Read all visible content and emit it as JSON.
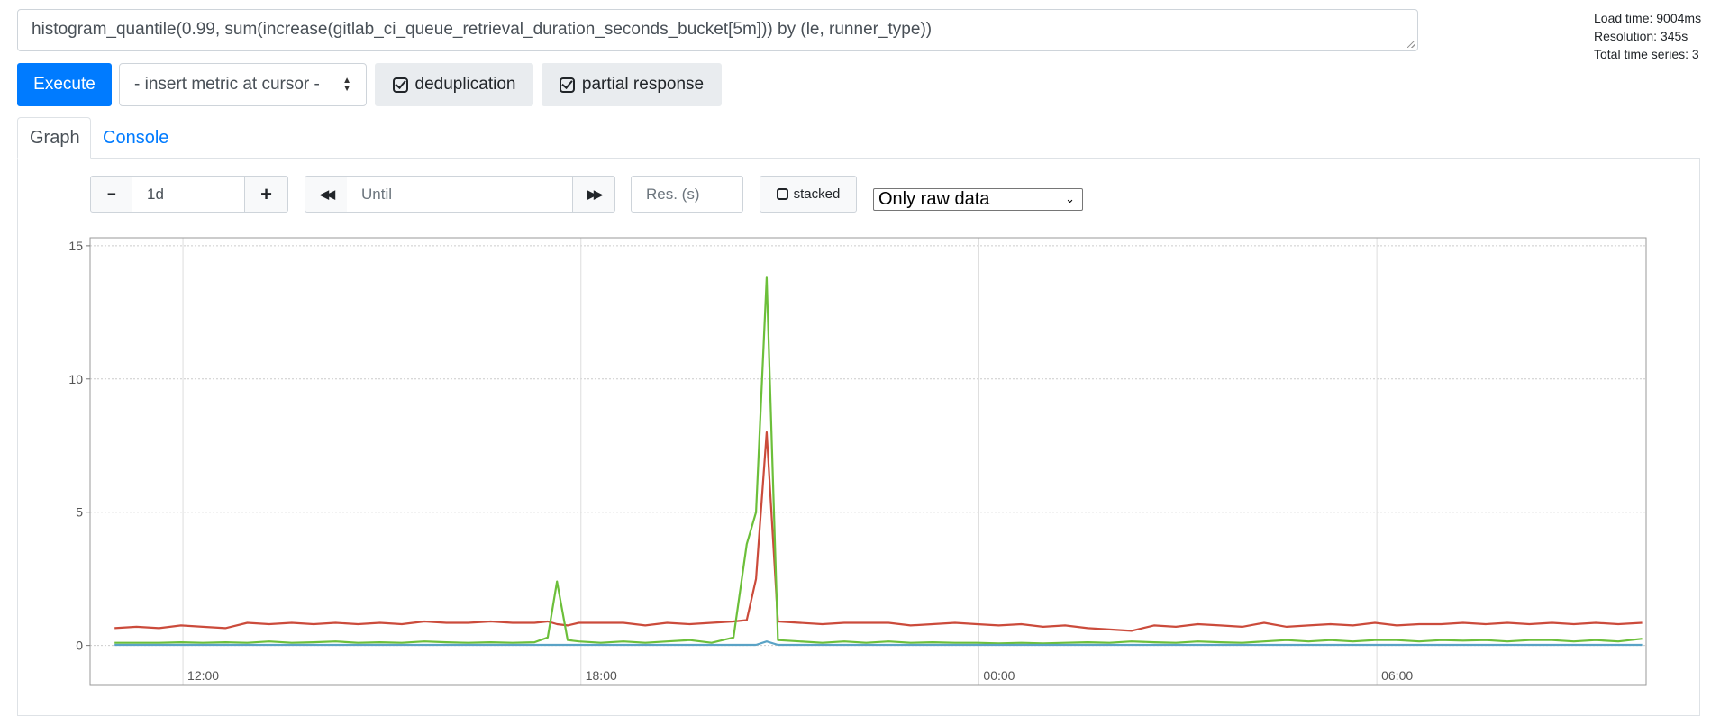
{
  "query": {
    "expression": "histogram_quantile(0.99, sum(increase(gitlab_ci_queue_retrieval_duration_seconds_bucket[5m])) by (le, runner_type))"
  },
  "stats": {
    "load_time": "Load time: 9004ms",
    "resolution": "Resolution: 345s",
    "total_series": "Total time series: 3"
  },
  "toolbar": {
    "execute_label": "Execute",
    "metric_select_value": "- insert metric at cursor -",
    "deduplication_label": "deduplication",
    "partial_response_label": "partial response"
  },
  "tabs": [
    {
      "label": "Graph",
      "active": true
    },
    {
      "label": "Console",
      "active": false
    }
  ],
  "graph_controls": {
    "minus": "−",
    "range": "1d",
    "plus": "+",
    "back": "◀◀",
    "until_placeholder": "Until",
    "forward": "▶▶",
    "res_placeholder": "Res. (s)",
    "stacked_label": "stacked",
    "downsample_value": "Only raw data"
  },
  "colors": {
    "accent": "#007bff",
    "series_red": "#cb4b3b",
    "series_green": "#6cbf3a",
    "series_blue": "#5aa3c6"
  },
  "chart_data": {
    "type": "line",
    "title": "",
    "xlabel": "",
    "ylabel": "",
    "ylim": [
      -1.5,
      15.3
    ],
    "yticks": [
      0,
      5,
      10,
      15
    ],
    "xticks": [
      "12:00",
      "18:00",
      "00:00",
      "06:00"
    ],
    "x_hours": [
      10.97,
      11.3,
      11.64,
      11.97,
      12.3,
      12.64,
      12.97,
      13.3,
      13.64,
      13.97,
      14.3,
      14.64,
      14.97,
      15.3,
      15.64,
      15.97,
      16.3,
      16.64,
      16.97,
      17.3,
      17.5,
      17.64,
      17.8,
      17.97,
      18.3,
      18.64,
      18.97,
      19.3,
      19.64,
      19.97,
      20.3,
      20.5,
      20.64,
      20.8,
      20.97,
      21.3,
      21.64,
      21.97,
      22.3,
      22.64,
      22.97,
      23.3,
      23.64,
      23.97,
      24.3,
      24.64,
      24.97,
      25.3,
      25.64,
      25.97,
      26.3,
      26.64,
      26.97,
      27.3,
      27.64,
      27.97,
      28.3,
      28.64,
      28.97,
      29.3,
      29.64,
      29.97,
      30.3,
      30.64,
      30.97,
      31.3,
      31.64,
      31.97,
      32.3,
      32.64,
      32.97,
      33.3,
      33.64,
      34.0
    ],
    "series": [
      {
        "color": "#cb4b3b",
        "values": [
          0.65,
          0.7,
          0.65,
          0.75,
          0.7,
          0.65,
          0.85,
          0.8,
          0.85,
          0.8,
          0.85,
          0.8,
          0.85,
          0.8,
          0.9,
          0.85,
          0.85,
          0.9,
          0.85,
          0.85,
          0.9,
          0.8,
          0.75,
          0.85,
          0.85,
          0.85,
          0.75,
          0.85,
          0.8,
          0.85,
          0.9,
          0.95,
          2.5,
          8.0,
          0.9,
          0.85,
          0.8,
          0.85,
          0.85,
          0.85,
          0.75,
          0.8,
          0.85,
          0.8,
          0.75,
          0.8,
          0.7,
          0.75,
          0.65,
          0.6,
          0.55,
          0.75,
          0.7,
          0.8,
          0.75,
          0.7,
          0.85,
          0.7,
          0.75,
          0.8,
          0.75,
          0.85,
          0.75,
          0.8,
          0.8,
          0.85,
          0.8,
          0.85,
          0.8,
          0.85,
          0.8,
          0.85,
          0.8,
          0.85
        ]
      },
      {
        "color": "#6cbf3a",
        "values": [
          0.1,
          0.1,
          0.1,
          0.12,
          0.1,
          0.12,
          0.1,
          0.15,
          0.1,
          0.12,
          0.15,
          0.1,
          0.12,
          0.1,
          0.15,
          0.12,
          0.1,
          0.12,
          0.1,
          0.12,
          0.3,
          2.4,
          0.2,
          0.15,
          0.1,
          0.15,
          0.1,
          0.15,
          0.2,
          0.1,
          0.3,
          3.8,
          5.0,
          13.8,
          0.2,
          0.15,
          0.1,
          0.15,
          0.1,
          0.15,
          0.1,
          0.12,
          0.1,
          0.1,
          0.08,
          0.1,
          0.08,
          0.1,
          0.12,
          0.1,
          0.15,
          0.12,
          0.1,
          0.15,
          0.12,
          0.1,
          0.15,
          0.2,
          0.15,
          0.2,
          0.15,
          0.2,
          0.2,
          0.15,
          0.2,
          0.18,
          0.2,
          0.15,
          0.2,
          0.2,
          0.15,
          0.2,
          0.15,
          0.25
        ]
      },
      {
        "color": "#5aa3c6",
        "values": [
          0.02,
          0.02,
          0.02,
          0.02,
          0.02,
          0.02,
          0.02,
          0.02,
          0.02,
          0.02,
          0.02,
          0.02,
          0.02,
          0.02,
          0.02,
          0.02,
          0.02,
          0.02,
          0.02,
          0.02,
          0.02,
          0.02,
          0.02,
          0.02,
          0.02,
          0.02,
          0.02,
          0.02,
          0.02,
          0.02,
          0.02,
          0.02,
          0.02,
          0.15,
          0.02,
          0.02,
          0.02,
          0.02,
          0.02,
          0.02,
          0.02,
          0.02,
          0.02,
          0.02,
          0.02,
          0.02,
          0.02,
          0.02,
          0.02,
          0.02,
          0.02,
          0.02,
          0.02,
          0.02,
          0.02,
          0.02,
          0.02,
          0.02,
          0.02,
          0.02,
          0.02,
          0.02,
          0.02,
          0.02,
          0.02,
          0.02,
          0.02,
          0.02,
          0.02,
          0.02,
          0.02,
          0.02,
          0.02,
          0.02
        ]
      }
    ]
  }
}
